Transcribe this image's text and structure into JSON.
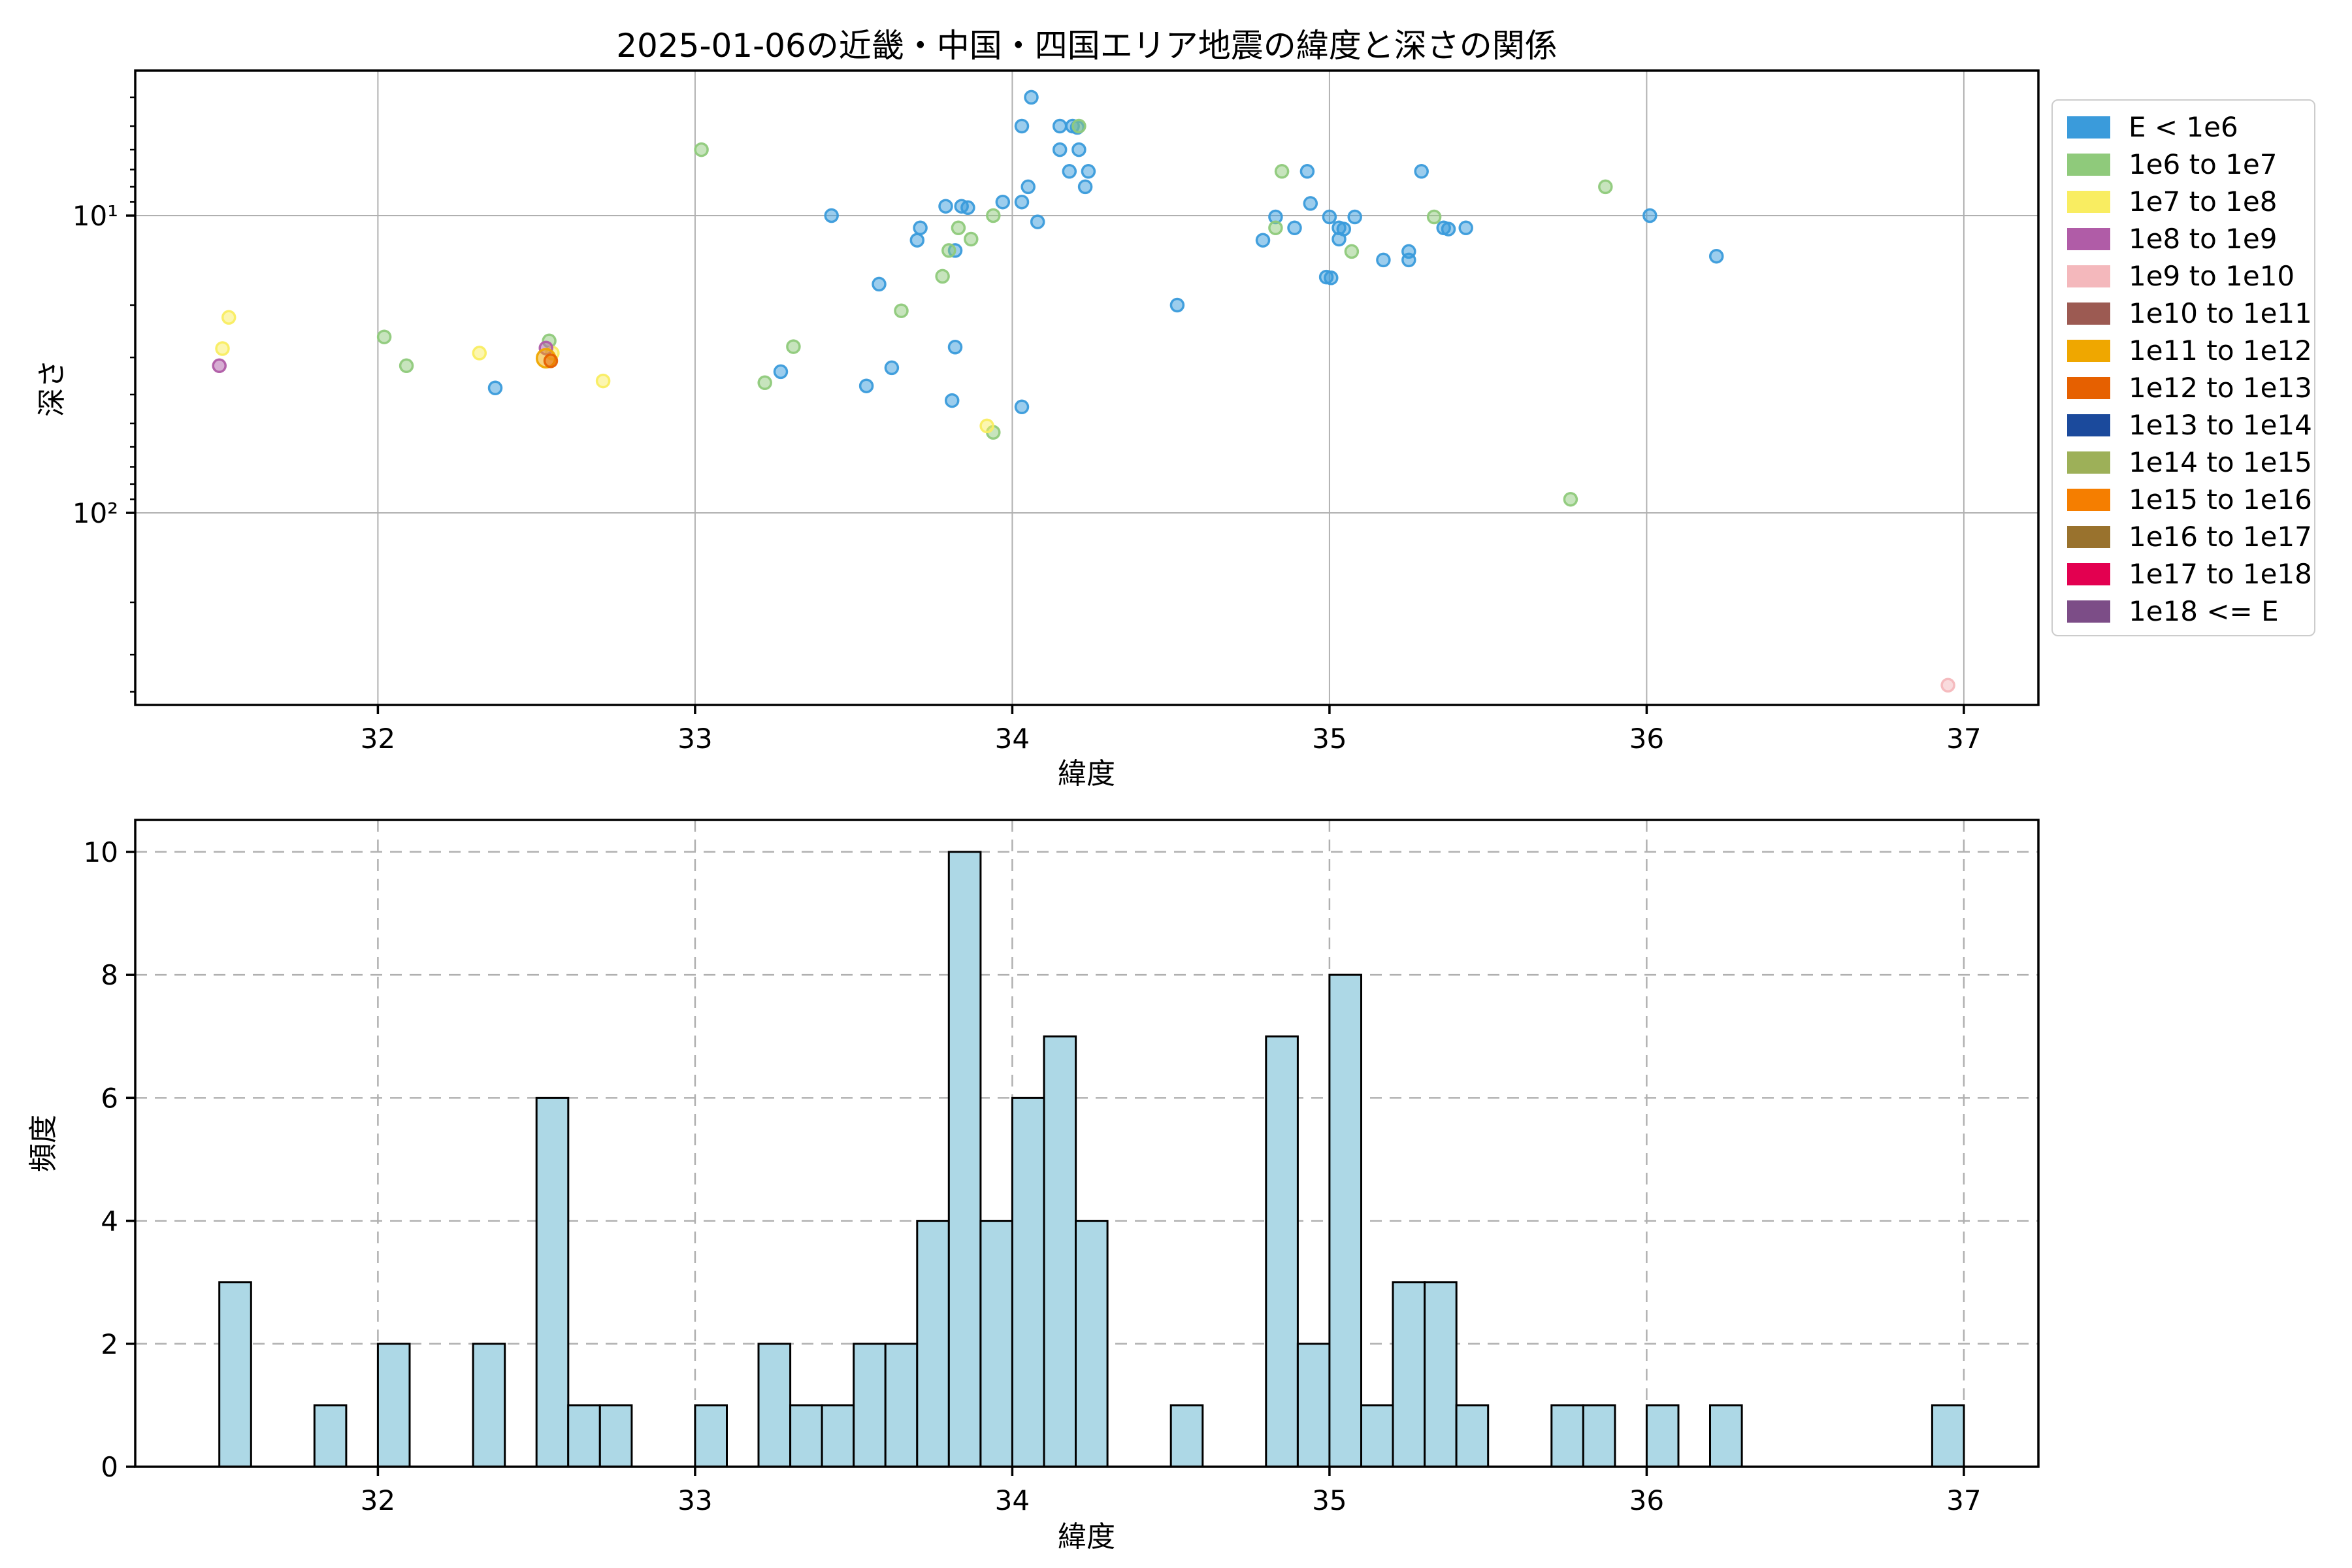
{
  "title": "2025-01-06の近畿・中国・四国エリア地震の緯度と深さの関係",
  "axes": {
    "scatter": {
      "xlabel": "緯度",
      "ylabel": "深さ",
      "ytick_labels": [
        "10¹",
        "10²"
      ]
    },
    "hist": {
      "xlabel": "緯度",
      "ylabel": "頻度",
      "ytick_labels": [
        "0",
        "2",
        "4",
        "6",
        "8",
        "10"
      ]
    }
  },
  "legend": {
    "entries": [
      {
        "label": "E < 1e6",
        "color": "#3A9BDB"
      },
      {
        "label": "1e6 to 1e7",
        "color": "#8FCA7B"
      },
      {
        "label": "1e7 to 1e8",
        "color": "#F9ED61"
      },
      {
        "label": "1e8 to 1e9",
        "color": "#B05CA7"
      },
      {
        "label": "1e9 to 1e10",
        "color": "#F4B8BC"
      },
      {
        "label": "1e10 to 1e11",
        "color": "#9C5A52"
      },
      {
        "label": "1e11 to 1e12",
        "color": "#EFA700"
      },
      {
        "label": "1e12 to 1e13",
        "color": "#E66000"
      },
      {
        "label": "1e13 to 1e14",
        "color": "#1B4A9C"
      },
      {
        "label": "1e14 to 1e15",
        "color": "#9DB058"
      },
      {
        "label": "1e15 to 1e16",
        "color": "#F57E00"
      },
      {
        "label": "1e16 to 1e17",
        "color": "#99722D"
      },
      {
        "label": "1e17 to 1e18",
        "color": "#E30050"
      },
      {
        "label": "1e18 <= E",
        "color": "#7C4D87"
      }
    ]
  },
  "chart_data": [
    {
      "type": "scatter",
      "title": "2025-01-06の近畿・中国・四国エリア地震の緯度と深さの関係",
      "xlabel": "緯度",
      "ylabel": "深さ",
      "xlim": [
        31.235,
        37.235
      ],
      "xticks": [
        32,
        33,
        34,
        35,
        36,
        37
      ],
      "yscale": "log",
      "y_inverted": true,
      "ylim_depth": [
        3.2,
        445
      ],
      "yticks": [
        10,
        100
      ],
      "ytick_labels": [
        "10¹",
        "10²"
      ],
      "y_minor_ticks": [
        4,
        5,
        6,
        7,
        8,
        9,
        20,
        30,
        40,
        50,
        60,
        70,
        80,
        90,
        200,
        300,
        400
      ],
      "grid": "solid",
      "legend_position": "outside upper right",
      "series": [
        {
          "name": "E < 1e6",
          "color": "#3A9BDB",
          "points": [
            [
              32.37,
              38
            ],
            [
              33.27,
              33.5
            ],
            [
              33.43,
              10
            ],
            [
              33.54,
              37.4
            ],
            [
              33.58,
              17
            ],
            [
              33.62,
              32.5
            ],
            [
              33.7,
              12.1
            ],
            [
              33.71,
              11
            ],
            [
              33.82,
              13.1
            ],
            [
              33.82,
              27.7
            ],
            [
              33.81,
              41.9
            ],
            [
              33.79,
              9.3
            ],
            [
              33.84,
              9.3
            ],
            [
              33.86,
              9.4
            ],
            [
              33.97,
              9
            ],
            [
              34.03,
              9
            ],
            [
              34.03,
              5
            ],
            [
              34.06,
              4
            ],
            [
              34.05,
              8
            ],
            [
              34.08,
              10.5
            ],
            [
              34.03,
              44
            ],
            [
              34.15,
              5
            ],
            [
              34.19,
              5
            ],
            [
              34.205,
              5.05
            ],
            [
              34.15,
              6
            ],
            [
              34.21,
              6
            ],
            [
              34.18,
              7.1
            ],
            [
              34.24,
              7.1
            ],
            [
              34.23,
              8
            ],
            [
              34.52,
              20
            ],
            [
              34.93,
              7.1
            ],
            [
              35.29,
              7.1
            ],
            [
              34.94,
              9.1
            ],
            [
              34.83,
              10.1
            ],
            [
              35.0,
              10.1
            ],
            [
              35.08,
              10.1
            ],
            [
              34.89,
              11
            ],
            [
              35.03,
              11
            ],
            [
              35.045,
              11.1
            ],
            [
              35.03,
              12
            ],
            [
              34.79,
              12.1
            ],
            [
              35.36,
              11
            ],
            [
              35.375,
              11.1
            ],
            [
              35.43,
              11
            ],
            [
              35.17,
              14.1
            ],
            [
              35.25,
              13.2
            ],
            [
              35.25,
              14.1
            ],
            [
              34.99,
              16.1
            ],
            [
              35.005,
              16.2
            ],
            [
              36.01,
              10
            ],
            [
              36.22,
              13.7
            ]
          ]
        },
        {
          "name": "1e6 to 1e7",
          "color": "#8FCA7B",
          "points": [
            [
              32.02,
              25.6
            ],
            [
              32.09,
              32
            ],
            [
              32.54,
              26.4
            ],
            [
              33.02,
              6
            ],
            [
              33.22,
              36.5
            ],
            [
              33.31,
              27.6
            ],
            [
              33.65,
              20.9
            ],
            [
              33.78,
              16
            ],
            [
              33.8,
              13.1
            ],
            [
              33.83,
              11
            ],
            [
              33.87,
              12
            ],
            [
              33.94,
              53.6
            ],
            [
              33.94,
              10
            ],
            [
              34.21,
              5
            ],
            [
              34.85,
              7.1
            ],
            [
              35.33,
              10.1
            ],
            [
              34.83,
              11
            ],
            [
              35.07,
              13.2
            ],
            [
              35.76,
              90
            ],
            [
              35.87,
              8
            ]
          ]
        },
        {
          "name": "1e7 to 1e8",
          "color": "#F9ED61",
          "points": [
            [
              31.53,
              22
            ],
            [
              31.51,
              28
            ],
            [
              32.32,
              29
            ],
            [
              32.55,
              29
            ],
            [
              32.71,
              36
            ],
            [
              33.92,
              51
            ]
          ]
        },
        {
          "name": "1e8 to 1e9",
          "color": "#B05CA7",
          "points": [
            [
              31.5,
              32
            ],
            [
              32.53,
              27.9
            ]
          ]
        },
        {
          "name": "1e9 to 1e10",
          "color": "#F4B8BC",
          "points": [
            [
              36.95,
              380
            ]
          ]
        },
        {
          "name": "1e11 to 1e12",
          "color": "#EFA700",
          "points": [
            [
              32.53,
              30.2,
              14
            ]
          ]
        },
        {
          "name": "1e12 to 1e13",
          "color": "#E66000",
          "points": [
            [
              32.545,
              30.8
            ]
          ]
        }
      ]
    },
    {
      "type": "bar",
      "xlabel": "緯度",
      "ylabel": "頻度",
      "xlim": [
        31.235,
        37.235
      ],
      "xticks": [
        32,
        33,
        34,
        35,
        36,
        37
      ],
      "ylim": [
        0,
        10.5
      ],
      "yticks": [
        0,
        2,
        4,
        6,
        8,
        10
      ],
      "grid": "dashed",
      "bar_color": "#ADD8E6",
      "bar_edge_color": "#000000",
      "bin_width": 0.1,
      "bins": [
        [
          31.5,
          3
        ],
        [
          31.8,
          1
        ],
        [
          32.0,
          2
        ],
        [
          32.3,
          2
        ],
        [
          32.5,
          6
        ],
        [
          32.6,
          1
        ],
        [
          32.7,
          1
        ],
        [
          33.0,
          1
        ],
        [
          33.2,
          2
        ],
        [
          33.3,
          1
        ],
        [
          33.4,
          1
        ],
        [
          33.5,
          2
        ],
        [
          33.6,
          2
        ],
        [
          33.7,
          4
        ],
        [
          33.8,
          10
        ],
        [
          33.9,
          4
        ],
        [
          34.0,
          6
        ],
        [
          34.1,
          7
        ],
        [
          34.2,
          4
        ],
        [
          34.5,
          1
        ],
        [
          34.8,
          7
        ],
        [
          34.9,
          2
        ],
        [
          35.0,
          8
        ],
        [
          35.1,
          1
        ],
        [
          35.2,
          3
        ],
        [
          35.3,
          3
        ],
        [
          35.4,
          1
        ],
        [
          35.7,
          1
        ],
        [
          35.8,
          1
        ],
        [
          36.0,
          1
        ],
        [
          36.2,
          1
        ],
        [
          36.9,
          1
        ]
      ]
    }
  ]
}
